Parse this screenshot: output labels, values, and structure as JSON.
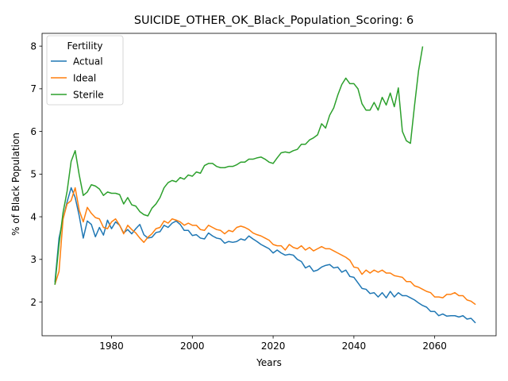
{
  "chart_data": {
    "type": "line",
    "title": "SUICIDE_OTHER_OK_Black_Population_Scoring: 6",
    "xlabel": "Years",
    "ylabel": "% of Black Population",
    "xlim": [
      1962.8,
      2075.2
    ],
    "ylim": [
      1.21,
      8.3
    ],
    "xticks": [
      1980,
      2000,
      2020,
      2040,
      2060
    ],
    "yticks": [
      2,
      3,
      4,
      5,
      6,
      7,
      8
    ],
    "grid": false,
    "legend": {
      "title": "Fertility",
      "placement": "top-left"
    },
    "series": [
      {
        "name": "Actual",
        "color": "#1f77b4",
        "x": [
          1966,
          1967,
          1968,
          1969,
          1970,
          1971,
          1972,
          1973,
          1974,
          1975,
          1976,
          1977,
          1978,
          1979,
          1980,
          1981,
          1982,
          1983,
          1984,
          1985,
          1986,
          1987,
          1988,
          1989,
          1990,
          1991,
          1992,
          1993,
          1994,
          1995,
          1996,
          1997,
          1998,
          1999,
          2000,
          2001,
          2002,
          2003,
          2004,
          2005,
          2006,
          2007,
          2008,
          2009,
          2010,
          2011,
          2012,
          2013,
          2014,
          2015,
          2016,
          2017,
          2018,
          2019,
          2020,
          2021,
          2022,
          2023,
          2024,
          2025,
          2026,
          2027,
          2028,
          2029,
          2030,
          2031,
          2032,
          2033,
          2034,
          2035,
          2036,
          2037,
          2038,
          2039,
          2040,
          2041,
          2042,
          2043,
          2044,
          2045,
          2046,
          2047,
          2048,
          2049,
          2050,
          2051,
          2052,
          2053,
          2054,
          2055,
          2056,
          2057,
          2058,
          2059,
          2060,
          2061,
          2062,
          2063,
          2064,
          2065,
          2066,
          2067,
          2068,
          2069,
          2070
        ],
        "values": [
          2.48,
          3.5,
          3.95,
          4.35,
          4.68,
          4.45,
          4.02,
          3.5,
          3.9,
          3.82,
          3.53,
          3.75,
          3.57,
          3.92,
          3.72,
          3.88,
          3.8,
          3.62,
          3.7,
          3.6,
          3.72,
          3.82,
          3.58,
          3.5,
          3.52,
          3.63,
          3.65,
          3.8,
          3.75,
          3.85,
          3.9,
          3.82,
          3.68,
          3.68,
          3.56,
          3.58,
          3.5,
          3.48,
          3.62,
          3.55,
          3.5,
          3.48,
          3.38,
          3.42,
          3.4,
          3.42,
          3.48,
          3.45,
          3.55,
          3.48,
          3.42,
          3.35,
          3.3,
          3.25,
          3.15,
          3.22,
          3.15,
          3.1,
          3.12,
          3.1,
          3.0,
          2.95,
          2.8,
          2.85,
          2.72,
          2.75,
          2.82,
          2.86,
          2.88,
          2.8,
          2.82,
          2.7,
          2.75,
          2.6,
          2.58,
          2.45,
          2.32,
          2.3,
          2.2,
          2.22,
          2.12,
          2.22,
          2.1,
          2.25,
          2.12,
          2.22,
          2.15,
          2.15,
          2.1,
          2.05,
          1.98,
          1.92,
          1.88,
          1.78,
          1.78,
          1.68,
          1.72,
          1.67,
          1.68,
          1.68,
          1.65,
          1.68,
          1.6,
          1.62,
          1.52
        ]
      },
      {
        "name": "Ideal",
        "color": "#ff7f0e",
        "x": [
          1966,
          1967,
          1968,
          1969,
          1970,
          1971,
          1972,
          1973,
          1974,
          1975,
          1976,
          1977,
          1978,
          1979,
          1980,
          1981,
          1982,
          1983,
          1984,
          1985,
          1986,
          1987,
          1988,
          1989,
          1990,
          1991,
          1992,
          1993,
          1994,
          1995,
          1996,
          1997,
          1998,
          1999,
          2000,
          2001,
          2002,
          2003,
          2004,
          2005,
          2006,
          2007,
          2008,
          2009,
          2010,
          2011,
          2012,
          2013,
          2014,
          2015,
          2016,
          2017,
          2018,
          2019,
          2020,
          2021,
          2022,
          2023,
          2024,
          2025,
          2026,
          2027,
          2028,
          2029,
          2030,
          2031,
          2032,
          2033,
          2034,
          2035,
          2036,
          2037,
          2038,
          2039,
          2040,
          2041,
          2042,
          2043,
          2044,
          2045,
          2046,
          2047,
          2048,
          2049,
          2050,
          2051,
          2052,
          2053,
          2054,
          2055,
          2056,
          2057,
          2058,
          2059,
          2060,
          2061,
          2062,
          2063,
          2064,
          2065,
          2066,
          2067,
          2068,
          2069,
          2070
        ],
        "values": [
          2.42,
          2.72,
          3.95,
          4.3,
          4.38,
          4.68,
          4.15,
          3.88,
          4.22,
          4.08,
          3.98,
          3.95,
          3.75,
          3.72,
          3.88,
          3.95,
          3.8,
          3.6,
          3.8,
          3.7,
          3.62,
          3.5,
          3.4,
          3.52,
          3.6,
          3.72,
          3.75,
          3.9,
          3.85,
          3.95,
          3.92,
          3.88,
          3.8,
          3.85,
          3.8,
          3.8,
          3.7,
          3.68,
          3.8,
          3.75,
          3.7,
          3.68,
          3.6,
          3.68,
          3.65,
          3.75,
          3.78,
          3.75,
          3.7,
          3.62,
          3.58,
          3.55,
          3.5,
          3.45,
          3.35,
          3.32,
          3.32,
          3.22,
          3.35,
          3.28,
          3.25,
          3.32,
          3.22,
          3.28,
          3.2,
          3.25,
          3.3,
          3.25,
          3.25,
          3.2,
          3.15,
          3.1,
          3.05,
          2.98,
          2.82,
          2.8,
          2.65,
          2.75,
          2.68,
          2.75,
          2.7,
          2.75,
          2.68,
          2.68,
          2.62,
          2.6,
          2.58,
          2.48,
          2.48,
          2.38,
          2.35,
          2.3,
          2.25,
          2.22,
          2.12,
          2.12,
          2.1,
          2.18,
          2.18,
          2.22,
          2.15,
          2.15,
          2.05,
          2.02,
          1.95
        ]
      },
      {
        "name": "Sterile",
        "color": "#2ca02c",
        "x": [
          1966,
          1967,
          1968,
          1969,
          1970,
          1971,
          1972,
          1973,
          1974,
          1975,
          1976,
          1977,
          1978,
          1979,
          1980,
          1981,
          1982,
          1983,
          1984,
          1985,
          1986,
          1987,
          1988,
          1989,
          1990,
          1991,
          1992,
          1993,
          1994,
          1995,
          1996,
          1997,
          1998,
          1999,
          2000,
          2001,
          2002,
          2003,
          2004,
          2005,
          2006,
          2007,
          2008,
          2009,
          2010,
          2011,
          2012,
          2013,
          2014,
          2015,
          2016,
          2017,
          2018,
          2019,
          2020,
          2021,
          2022,
          2023,
          2024,
          2025,
          2026,
          2027,
          2028,
          2029,
          2030,
          2031,
          2032,
          2033,
          2034,
          2035,
          2036,
          2037,
          2038,
          2039,
          2040,
          2041,
          2042,
          2043,
          2044,
          2045,
          2046,
          2047,
          2048,
          2049,
          2050,
          2051,
          2052,
          2053,
          2054,
          2055,
          2056,
          2057
        ],
        "values": [
          2.42,
          3.35,
          4.1,
          4.6,
          5.3,
          5.55,
          4.98,
          4.5,
          4.58,
          4.75,
          4.72,
          4.65,
          4.5,
          4.58,
          4.55,
          4.55,
          4.52,
          4.3,
          4.45,
          4.28,
          4.25,
          4.12,
          4.05,
          4.02,
          4.2,
          4.3,
          4.45,
          4.68,
          4.8,
          4.85,
          4.82,
          4.92,
          4.88,
          4.98,
          4.95,
          5.05,
          5.02,
          5.2,
          5.25,
          5.25,
          5.18,
          5.15,
          5.15,
          5.18,
          5.18,
          5.22,
          5.28,
          5.28,
          5.35,
          5.35,
          5.38,
          5.4,
          5.35,
          5.28,
          5.25,
          5.38,
          5.5,
          5.52,
          5.5,
          5.55,
          5.58,
          5.7,
          5.7,
          5.8,
          5.85,
          5.92,
          6.18,
          6.08,
          6.38,
          6.55,
          6.85,
          7.1,
          7.25,
          7.12,
          7.12,
          7.0,
          6.65,
          6.5,
          6.5,
          6.68,
          6.5,
          6.8,
          6.62,
          6.9,
          6.58,
          7.02,
          6.0,
          5.78,
          5.72,
          6.6,
          7.42,
          7.98
        ]
      }
    ]
  }
}
